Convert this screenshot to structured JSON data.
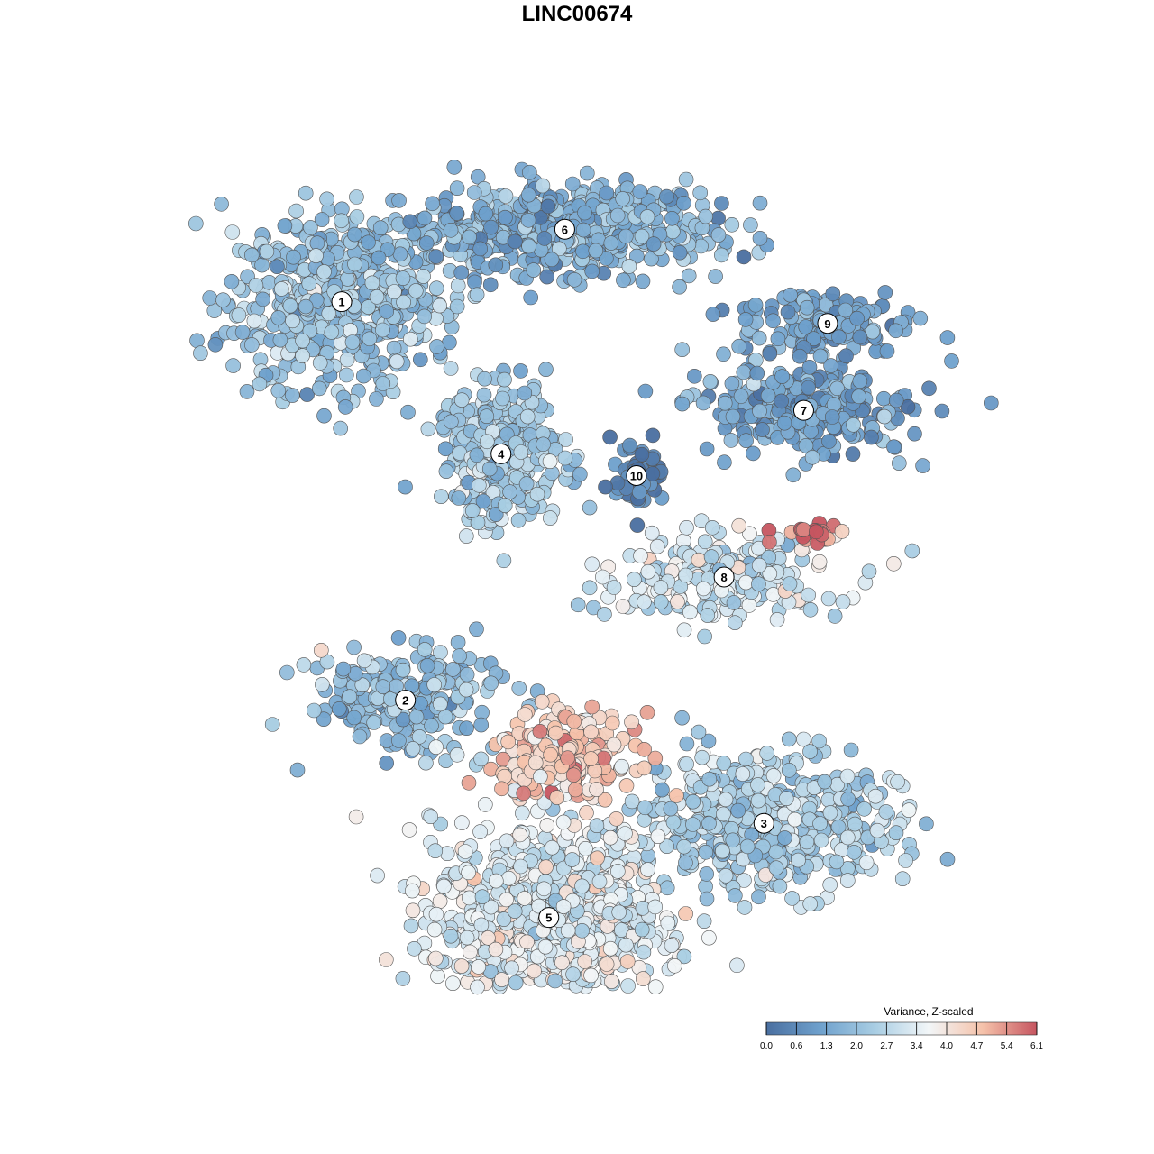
{
  "title": "LINC00674",
  "chart_data": {
    "type": "scatter",
    "title": "LINC00674",
    "xlabel": "",
    "ylabel": "",
    "grid": false,
    "legend_placement": "bottom-right",
    "colorbar": {
      "title": "Variance, Z-scaled",
      "range": [
        0.0,
        6.1
      ],
      "ticks": [
        "0.0",
        "0.6",
        "1.3",
        "2.0",
        "2.7",
        "3.4",
        "4.0",
        "4.7",
        "5.4",
        "6.1"
      ],
      "colors": [
        "#4a6fa0",
        "#6fa1cd",
        "#a8cde3",
        "#f2f6f8",
        "#f5c2aa",
        "#c65560"
      ]
    },
    "clusters": [
      {
        "label": "1",
        "x": 0.18,
        "y": 0.72,
        "value_mean": 2.1,
        "spread": [
          0.13,
          0.1
        ],
        "n": 520
      },
      {
        "label": "6",
        "x": 0.46,
        "y": 0.82,
        "value_mean": 1.6,
        "spread": [
          0.17,
          0.05
        ],
        "n": 560
      },
      {
        "label": "9",
        "x": 0.79,
        "y": 0.69,
        "value_mean": 1.3,
        "spread": [
          0.1,
          0.04
        ],
        "n": 160
      },
      {
        "label": "7",
        "x": 0.76,
        "y": 0.57,
        "value_mean": 1.2,
        "spread": [
          0.12,
          0.05
        ],
        "n": 260
      },
      {
        "label": "4",
        "x": 0.38,
        "y": 0.51,
        "value_mean": 2.4,
        "spread": [
          0.07,
          0.08
        ],
        "n": 300
      },
      {
        "label": "10",
        "x": 0.55,
        "y": 0.48,
        "value_mean": 0.4,
        "spread": [
          0.03,
          0.04
        ],
        "n": 60
      },
      {
        "label": "8",
        "x": 0.66,
        "y": 0.34,
        "value_mean": 3.0,
        "spread": [
          0.13,
          0.05
        ],
        "n": 240
      },
      {
        "label": "2",
        "x": 0.26,
        "y": 0.17,
        "value_mean": 2.0,
        "spread": [
          0.11,
          0.06
        ],
        "n": 240
      },
      {
        "label": "3",
        "x": 0.71,
        "y": 0.0,
        "value_mean": 2.5,
        "spread": [
          0.15,
          0.08
        ],
        "n": 480
      },
      {
        "label": "5",
        "x": 0.44,
        "y": -0.13,
        "value_mean": 3.4,
        "spread": [
          0.13,
          0.11
        ],
        "n": 820
      }
    ],
    "hot_spots": [
      {
        "x": 0.46,
        "y": 0.09,
        "value_mean": 4.6,
        "spread": [
          0.08,
          0.05
        ],
        "n": 200
      },
      {
        "x": 0.77,
        "y": 0.4,
        "value_mean": 5.8,
        "spread": [
          0.04,
          0.01
        ],
        "n": 25
      }
    ]
  }
}
